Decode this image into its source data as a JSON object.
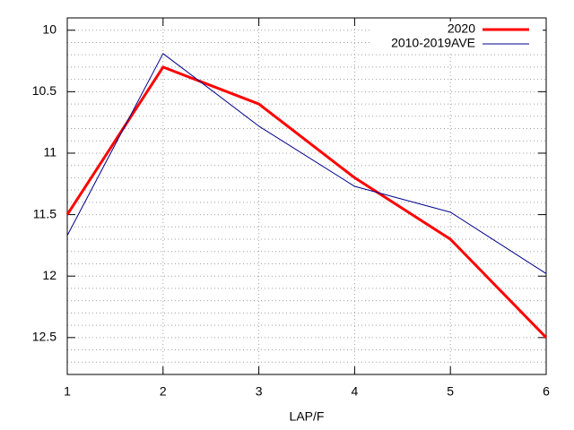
{
  "chart_data": {
    "type": "line",
    "x_label": "LAP/F",
    "x": [
      1,
      2,
      3,
      4,
      5,
      6
    ],
    "series": [
      {
        "name": "2020",
        "color": "#ff0000",
        "line_width": 3,
        "values": [
          11.5,
          10.3,
          10.6,
          11.2,
          11.7,
          12.5
        ]
      },
      {
        "name": "2010-2019AVE",
        "color": "#00008b",
        "line_width": 1,
        "values": [
          11.67,
          10.19,
          10.78,
          11.27,
          11.48,
          11.98
        ]
      }
    ],
    "xlim": [
      1,
      6
    ],
    "xticks": [
      1,
      2,
      3,
      4,
      5,
      6
    ],
    "ylim": [
      9.9,
      12.8
    ],
    "y_inverted": true,
    "yticks": [
      10,
      10.5,
      11,
      11.5,
      12,
      12.5
    ],
    "y_minor_divisions": 5,
    "grid": true,
    "legend": "top-right"
  }
}
